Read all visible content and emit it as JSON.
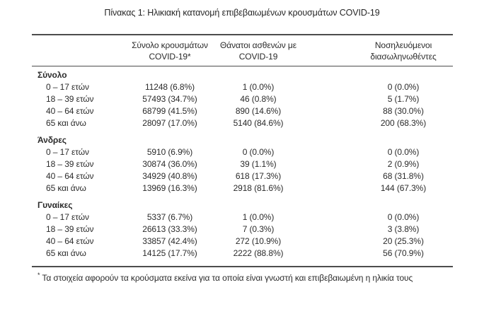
{
  "title": "Πίνακας 1: Ηλικιακή κατανομή επιβεβαιωμένων κρουσμάτων COVID-19",
  "table": {
    "columns": [
      {
        "line1": "Σύνολο κρουσμάτων",
        "line2": "COVID-19*"
      },
      {
        "line1": "Θάνατοι ασθενών με",
        "line2": "COVID-19"
      },
      {
        "line1": "Νοσηλευόμενοι",
        "line2": "διασωληνωθέντες"
      }
    ],
    "sections": [
      {
        "label": "Σύνολο",
        "rows": [
          {
            "age": "0 – 17 ετών",
            "cases": "11248 (6.8%)",
            "deaths": "1 (0.0%)",
            "intubated": "0 (0.0%)"
          },
          {
            "age": "18 – 39 ετών",
            "cases": "57493 (34.7%)",
            "deaths": "46 (0.8%)",
            "intubated": "5 (1.7%)"
          },
          {
            "age": "40 – 64 ετών",
            "cases": "68799 (41.5%)",
            "deaths": "890 (14.6%)",
            "intubated": "88 (30.0%)"
          },
          {
            "age": "65 και άνω",
            "cases": "28097 (17.0%)",
            "deaths": "5140 (84.6%)",
            "intubated": "200 (68.3%)"
          }
        ]
      },
      {
        "label": "Άνδρες",
        "rows": [
          {
            "age": "0 – 17 ετών",
            "cases": "5910 (6.9%)",
            "deaths": "0 (0.0%)",
            "intubated": "0 (0.0%)"
          },
          {
            "age": "18 – 39 ετών",
            "cases": "30874 (36.0%)",
            "deaths": "39 (1.1%)",
            "intubated": "2 (0.9%)"
          },
          {
            "age": "40 – 64 ετών",
            "cases": "34929 (40.8%)",
            "deaths": "618 (17.3%)",
            "intubated": "68 (31.8%)"
          },
          {
            "age": "65 και άνω",
            "cases": "13969 (16.3%)",
            "deaths": "2918 (81.6%)",
            "intubated": "144 (67.3%)"
          }
        ]
      },
      {
        "label": "Γυναίκες",
        "rows": [
          {
            "age": "0 – 17 ετών",
            "cases": "5337 (6.7%)",
            "deaths": "1 (0.0%)",
            "intubated": "0 (0.0%)"
          },
          {
            "age": "18 – 39 ετών",
            "cases": "26613 (33.3%)",
            "deaths": "7 (0.3%)",
            "intubated": "3 (3.8%)"
          },
          {
            "age": "40 – 64 ετών",
            "cases": "33857 (42.4%)",
            "deaths": "272 (10.9%)",
            "intubated": "20 (25.3%)"
          },
          {
            "age": "65 και άνω",
            "cases": "14125 (17.7%)",
            "deaths": "2222 (88.8%)",
            "intubated": "56 (70.9%)"
          }
        ]
      }
    ],
    "footnote_marker": "*",
    "footnote": "Τα στοιχεία αφορούν τα κρούσματα εκείνα για τα οποία είναι γνωστή και επιβεβαιωμένη η ηλικία τους"
  }
}
